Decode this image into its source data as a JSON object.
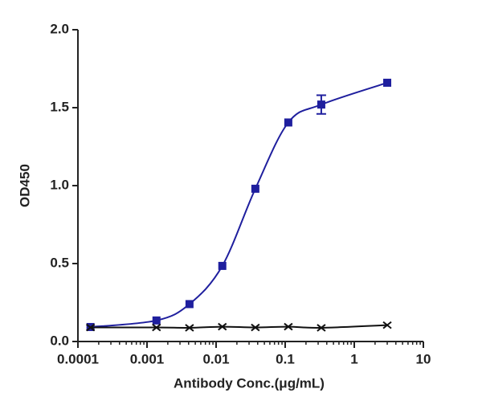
{
  "chart_data": {
    "type": "scatter",
    "xlabel": "Antibody Conc.(μg/mL)",
    "ylabel": "OD450",
    "xscale": "log",
    "xlim": [
      0.0001,
      10
    ],
    "xticks": [
      0.0001,
      0.001,
      0.01,
      0.1,
      1,
      10
    ],
    "ylim": [
      0,
      2
    ],
    "yticks": [
      {
        "value": 0,
        "label": "0.0"
      },
      0.5,
      {
        "value": 1,
        "label": "1.0"
      },
      1.5,
      {
        "value": 2,
        "label": "2.0"
      }
    ],
    "x": [
      0.000152,
      0.00137,
      0.00412,
      0.0123,
      0.037,
      0.111,
      0.333,
      3
    ],
    "series": [
      {
        "color": "#1f1f9e",
        "marker": "square",
        "values": [
          0.093,
          0.135,
          0.24,
          0.485,
          0.98,
          1.405,
          1.52,
          1.66
        ],
        "errors": [
          null,
          null,
          null,
          null,
          null,
          null,
          0.06,
          null
        ]
      },
      {
        "color": "#111111",
        "marker": "x",
        "values": [
          0.09,
          0.09,
          0.088,
          0.095,
          0.09,
          0.095,
          0.088,
          0.105
        ]
      }
    ]
  }
}
